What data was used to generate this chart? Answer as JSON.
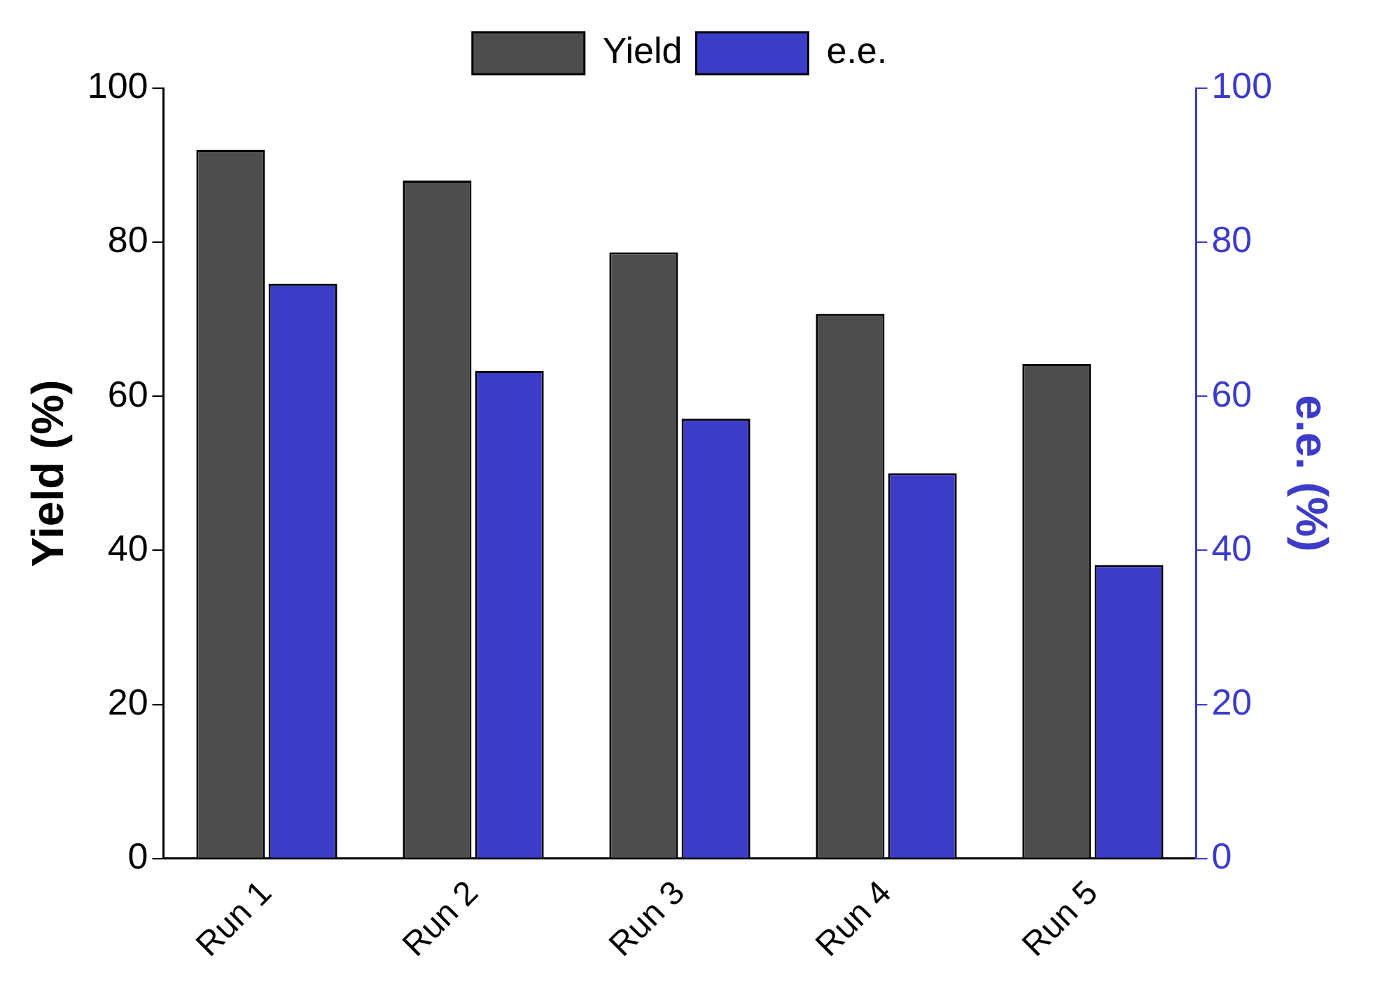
{
  "chart_data": {
    "type": "bar",
    "categories": [
      "Run 1",
      "Run 2",
      "Run 3",
      "Run 4",
      "Run 5"
    ],
    "series": [
      {
        "name": "Yield",
        "color": "#4d4d4d",
        "values": [
          92,
          88,
          78.7,
          70.7,
          64.2
        ]
      },
      {
        "name": "e.e.",
        "color": "#3c3cc8",
        "values": [
          74.6,
          63.3,
          57.1,
          50,
          38.1
        ],
        "axis": "y2"
      }
    ],
    "ylabel": "Yield (%)",
    "y2label": "e.e. (%)",
    "ylim": [
      0,
      100
    ],
    "yticks": [
      0,
      20,
      40,
      60,
      80,
      100
    ],
    "y2lim": [
      0,
      100
    ],
    "y2ticks": [
      0,
      20,
      40,
      60,
      80,
      100
    ],
    "legend": "top",
    "grid": false
  }
}
